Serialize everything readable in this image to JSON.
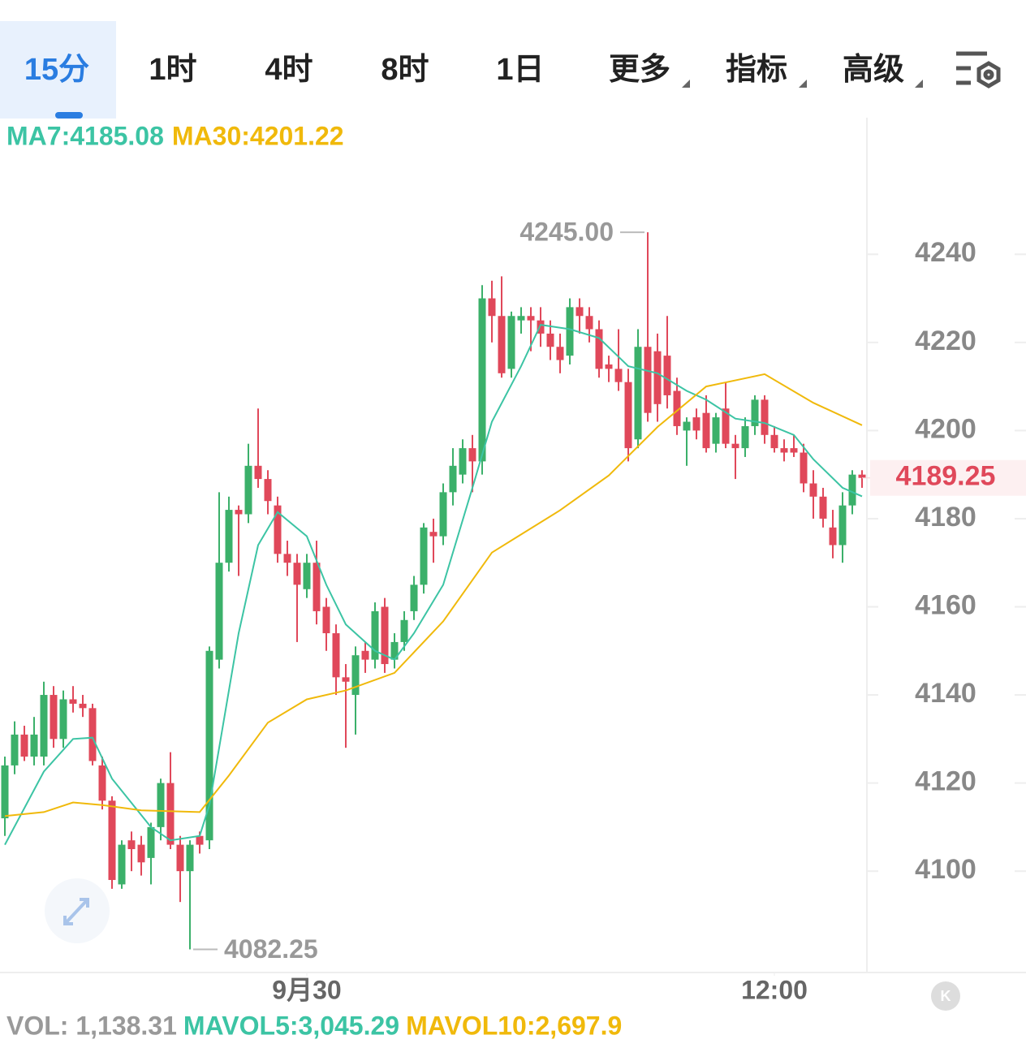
{
  "tabs": [
    "15分",
    "1时",
    "4时",
    "8时",
    "1日",
    "更多",
    "指标",
    "高级"
  ],
  "chart_data": {
    "type": "candlestick",
    "ohlc": [
      [
        4112,
        4126,
        4108,
        4124
      ],
      [
        4124,
        4134,
        4122,
        4131
      ],
      [
        4131,
        4133,
        4125,
        4126
      ],
      [
        4126,
        4135,
        4124,
        4131
      ],
      [
        4126,
        4143,
        4124,
        4140
      ],
      [
        4140,
        4142,
        4128,
        4130
      ],
      [
        4130,
        4141,
        4128,
        4139
      ],
      [
        4139,
        4142,
        4136,
        4138
      ],
      [
        4138,
        4140,
        4135,
        4137
      ],
      [
        4137,
        4138,
        4124,
        4125
      ],
      [
        4124,
        4126,
        4114,
        4116
      ],
      [
        4116,
        4117,
        4096,
        4098
      ],
      [
        4097,
        4107,
        4096,
        4106
      ],
      [
        4107,
        4109,
        4100,
        4105
      ],
      [
        4106,
        4108,
        4099,
        4102
      ],
      [
        4103,
        4111,
        4097,
        4110
      ],
      [
        4110,
        4121,
        4107,
        4120
      ],
      [
        4120,
        4127,
        4105,
        4106
      ],
      [
        4106,
        4108,
        4093,
        4100
      ],
      [
        4100,
        4107,
        4082.25,
        4106
      ],
      [
        4108,
        4109,
        4104,
        4106
      ],
      [
        4107,
        4151,
        4105,
        4150
      ],
      [
        4148,
        4186,
        4146,
        4170
      ],
      [
        4170,
        4185,
        4168,
        4182
      ],
      [
        4182,
        4183,
        4167,
        4181
      ],
      [
        4181,
        4197,
        4179,
        4192
      ],
      [
        4192,
        4205,
        4187,
        4189
      ],
      [
        4189,
        4191,
        4181,
        4184
      ],
      [
        4183,
        4185,
        4170,
        4172
      ],
      [
        4172,
        4175,
        4167,
        4170
      ],
      [
        4170,
        4172,
        4152,
        4165
      ],
      [
        4164,
        4172,
        4162,
        4170
      ],
      [
        4170,
        4175,
        4156,
        4159
      ],
      [
        4160,
        4162,
        4150,
        4154
      ],
      [
        4154,
        4156,
        4140,
        4144
      ],
      [
        4144,
        4147,
        4128,
        4143
      ],
      [
        4140,
        4151,
        4131,
        4149
      ],
      [
        4150,
        4152,
        4145,
        4148
      ],
      [
        4148,
        4161,
        4146,
        4159
      ],
      [
        4160,
        4162,
        4145,
        4147
      ],
      [
        4148,
        4154,
        4146,
        4152
      ],
      [
        4152,
        4159,
        4150,
        4157
      ],
      [
        4159,
        4167,
        4157,
        4165
      ],
      [
        4165,
        4179,
        4163,
        4178
      ],
      [
        4177,
        4180,
        4170,
        4176
      ],
      [
        4176,
        4188,
        4174,
        4186
      ],
      [
        4186,
        4196,
        4183,
        4192
      ],
      [
        4190,
        4198,
        4188,
        4196
      ],
      [
        4196,
        4199,
        4186,
        4193
      ],
      [
        4193,
        4233,
        4190,
        4230
      ],
      [
        4230,
        4234,
        4220,
        4226
      ],
      [
        4226,
        4235,
        4212,
        4213
      ],
      [
        4214,
        4227,
        4212,
        4226
      ],
      [
        4225,
        4228,
        4222,
        4226
      ],
      [
        4226,
        4228,
        4218,
        4225
      ],
      [
        4225,
        4228,
        4219,
        4222
      ],
      [
        4222,
        4225,
        4216,
        4219
      ],
      [
        4219,
        4222,
        4213,
        4216
      ],
      [
        4217,
        4230,
        4215,
        4228
      ],
      [
        4228,
        4230,
        4222,
        4226
      ],
      [
        4226,
        4228,
        4220,
        4223
      ],
      [
        4223,
        4225,
        4212,
        4214
      ],
      [
        4215,
        4217,
        4211,
        4214
      ],
      [
        4214,
        4223,
        4209,
        4211
      ],
      [
        4211,
        4214,
        4193,
        4196
      ],
      [
        4198,
        4223,
        4196,
        4219
      ],
      [
        4219,
        4245,
        4202,
        4204
      ],
      [
        4218,
        4222,
        4202,
        4206
      ],
      [
        4217,
        4226,
        4205,
        4208
      ],
      [
        4209,
        4212,
        4199,
        4201
      ],
      [
        4200,
        4203,
        4192,
        4202
      ],
      [
        4203,
        4205,
        4198,
        4200
      ],
      [
        4204,
        4208,
        4195,
        4196
      ],
      [
        4197,
        4204,
        4195,
        4203
      ],
      [
        4205,
        4211,
        4196,
        4197
      ],
      [
        4197,
        4199,
        4189,
        4196
      ],
      [
        4196,
        4203,
        4194,
        4201
      ],
      [
        4201,
        4208,
        4199,
        4207
      ],
      [
        4207,
        4208,
        4197,
        4199
      ],
      [
        4199,
        4201,
        4195,
        4196
      ],
      [
        4196,
        4198,
        4193,
        4195
      ],
      [
        4196,
        4199,
        4194,
        4195
      ],
      [
        4195,
        4197,
        4186,
        4188
      ],
      [
        4188,
        4191,
        4180,
        4185
      ],
      [
        4185,
        4187,
        4178,
        4180
      ],
      [
        4178,
        4182,
        4171,
        4174
      ],
      [
        4174,
        4186,
        4170,
        4183
      ],
      [
        4183,
        4191,
        4181,
        4190
      ],
      [
        4190,
        4191,
        4187,
        4189.25
      ]
    ],
    "up_color": "#3bb06a",
    "down_color": "#e0485a",
    "series": [
      {
        "name": "MA7:4185.08",
        "color": "#3cc4a4",
        "x": [
          0,
          4,
          7,
          9,
          11,
          15,
          17,
          20,
          21,
          24,
          26,
          28,
          31,
          33,
          35,
          38,
          40,
          42,
          45,
          48,
          50,
          53,
          55,
          58,
          61,
          64,
          67,
          70,
          72,
          75,
          78,
          81,
          83,
          86,
          88
        ],
        "values": [
          4106,
          4122.6,
          4130,
          4130.3,
          4121,
          4110,
          4107,
          4108,
          4115,
          4154,
          4174,
          4181.5,
          4176,
          4165,
          4156,
          4150,
          4148,
          4154,
          4165,
          4187,
          4202,
          4214.6,
          4224,
          4223,
          4221,
          4214.6,
          4213,
          4209,
          4207,
          4202.7,
          4201.7,
          4199,
          4193.5,
          4187,
          4185.08
        ]
      },
      {
        "name": "MA30:4201.22",
        "color": "#f0b90b",
        "x": [
          0,
          4,
          7,
          10,
          14,
          20,
          23,
          27,
          31,
          35,
          40,
          45,
          50,
          57,
          62,
          67,
          72,
          78,
          83,
          88
        ],
        "values": [
          4112.5,
          4113.4,
          4115.6,
          4115,
          4113.8,
          4113.4,
          4121.7,
          4133.7,
          4139,
          4141,
          4145,
          4156.7,
          4172.3,
          4181.9,
          4189.8,
          4200.8,
          4210,
          4212.8,
          4206.3,
          4201.22
        ]
      }
    ],
    "max_label": {
      "value": 4245,
      "label": "4245.00"
    },
    "min_label": {
      "value": 4082.25,
      "label": "4082.25"
    },
    "last_price": 4189.25,
    "xlim": [
      -0.5,
      88.5
    ],
    "xticks": [
      {
        "value": 31,
        "label": "9月30"
      },
      {
        "value": 79,
        "label": "12:00"
      }
    ],
    "ylim": [
      4077,
      4271
    ],
    "yticks": [
      4100,
      4120,
      4140,
      4160,
      4180,
      4200,
      4220,
      4240
    ],
    "volume_legend": [
      {
        "text": "VOL: 1,138.31",
        "color": "#999999"
      },
      {
        "text": "MAVOL5:3,045.29",
        "color": "#3cc4a4"
      },
      {
        "text": "MAVOL10:2,697.9",
        "color": "#f0b90b"
      }
    ]
  }
}
